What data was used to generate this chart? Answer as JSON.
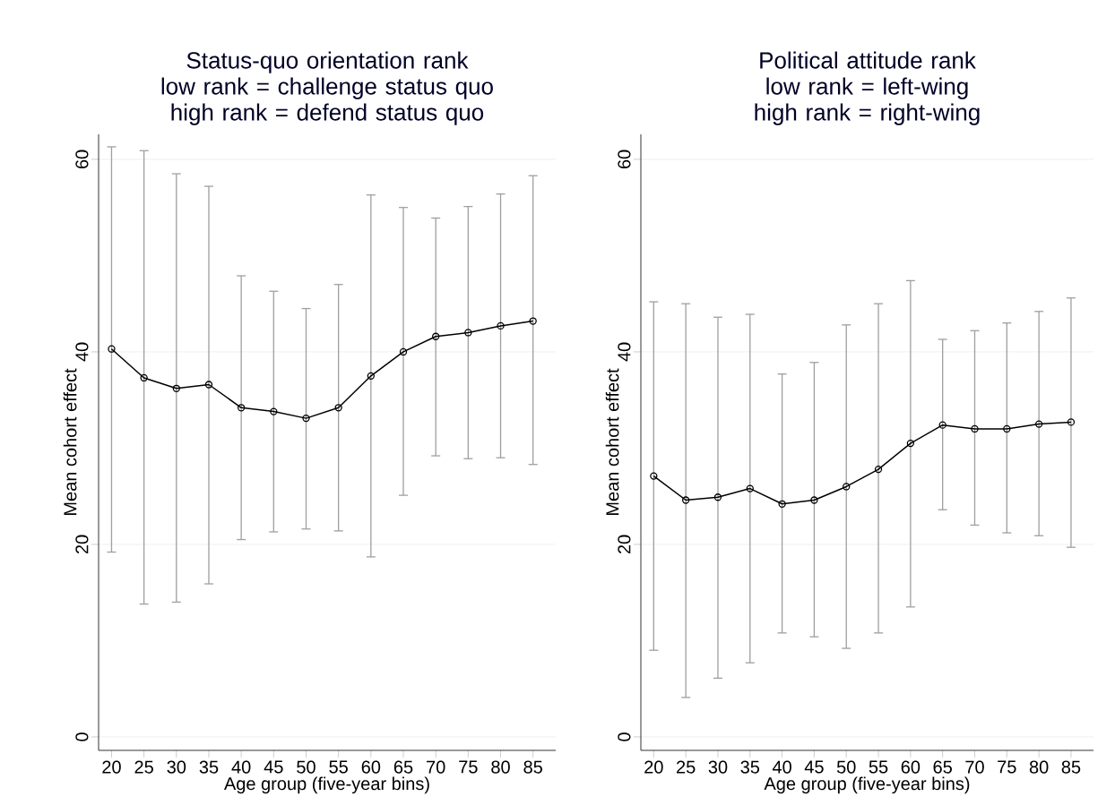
{
  "chart_data": [
    {
      "type": "line",
      "title": "Status-quo orientation rank",
      "subtitle": "low rank = challenge status quo\nhigh rank = defend status quo",
      "xlabel": "Age group (five-year bins)",
      "ylabel": "Mean cohort effect",
      "categories": [
        "20",
        "25",
        "30",
        "35",
        "40",
        "45",
        "50",
        "55",
        "60",
        "65",
        "70",
        "75",
        "80",
        "85"
      ],
      "series": [
        {
          "color": "#000000",
          "values": [
            40.3,
            37.3,
            36.2,
            36.6,
            34.2,
            33.8,
            33.1,
            34.2,
            37.5,
            40.0,
            41.6,
            42.0,
            42.7,
            43.2
          ],
          "errors": [
            [
              19.2,
              61.3
            ],
            [
              13.8,
              60.9
            ],
            [
              14.0,
              58.5
            ],
            [
              15.9,
              57.2
            ],
            [
              20.5,
              47.9
            ],
            [
              21.3,
              46.3
            ],
            [
              21.6,
              44.5
            ],
            [
              21.4,
              47.0
            ],
            [
              18.7,
              56.3
            ],
            [
              25.1,
              55.0
            ],
            [
              29.2,
              53.9
            ],
            [
              28.9,
              55.1
            ],
            [
              29.0,
              56.4
            ],
            [
              28.3,
              58.3
            ]
          ]
        }
      ],
      "ylim": [
        -1.4,
        62.6
      ],
      "yticks": [
        0,
        20,
        40,
        60
      ],
      "grid": "y",
      "marker": "circle",
      "line_style": "solid"
    },
    {
      "type": "line",
      "title": "Political attitude rank",
      "subtitle": "low rank = left-wing\nhigh rank = right-wing",
      "xlabel": "Age group (five-year bins)",
      "ylabel": "Mean cohort effect",
      "categories": [
        "20",
        "25",
        "30",
        "35",
        "40",
        "45",
        "50",
        "55",
        "60",
        "65",
        "70",
        "75",
        "80",
        "85"
      ],
      "series": [
        {
          "color": "#000000",
          "values": [
            27.1,
            24.6,
            24.9,
            25.8,
            24.2,
            24.6,
            26.0,
            27.8,
            30.5,
            32.4,
            32.0,
            32.0,
            32.5,
            32.7
          ],
          "errors": [
            [
              9.0,
              45.2
            ],
            [
              4.1,
              45.0
            ],
            [
              6.1,
              43.6
            ],
            [
              7.7,
              43.9
            ],
            [
              10.8,
              37.7
            ],
            [
              10.4,
              38.9
            ],
            [
              9.2,
              42.8
            ],
            [
              10.8,
              45.0
            ],
            [
              13.5,
              47.4
            ],
            [
              23.6,
              41.3
            ],
            [
              22.0,
              42.2
            ],
            [
              21.2,
              43.0
            ],
            [
              20.9,
              44.2
            ],
            [
              19.7,
              45.6
            ]
          ]
        }
      ],
      "ylim": [
        -1.4,
        62.6
      ],
      "yticks": [
        0,
        20,
        40,
        60
      ],
      "grid": "y",
      "marker": "circle",
      "line_style": "solid"
    }
  ]
}
